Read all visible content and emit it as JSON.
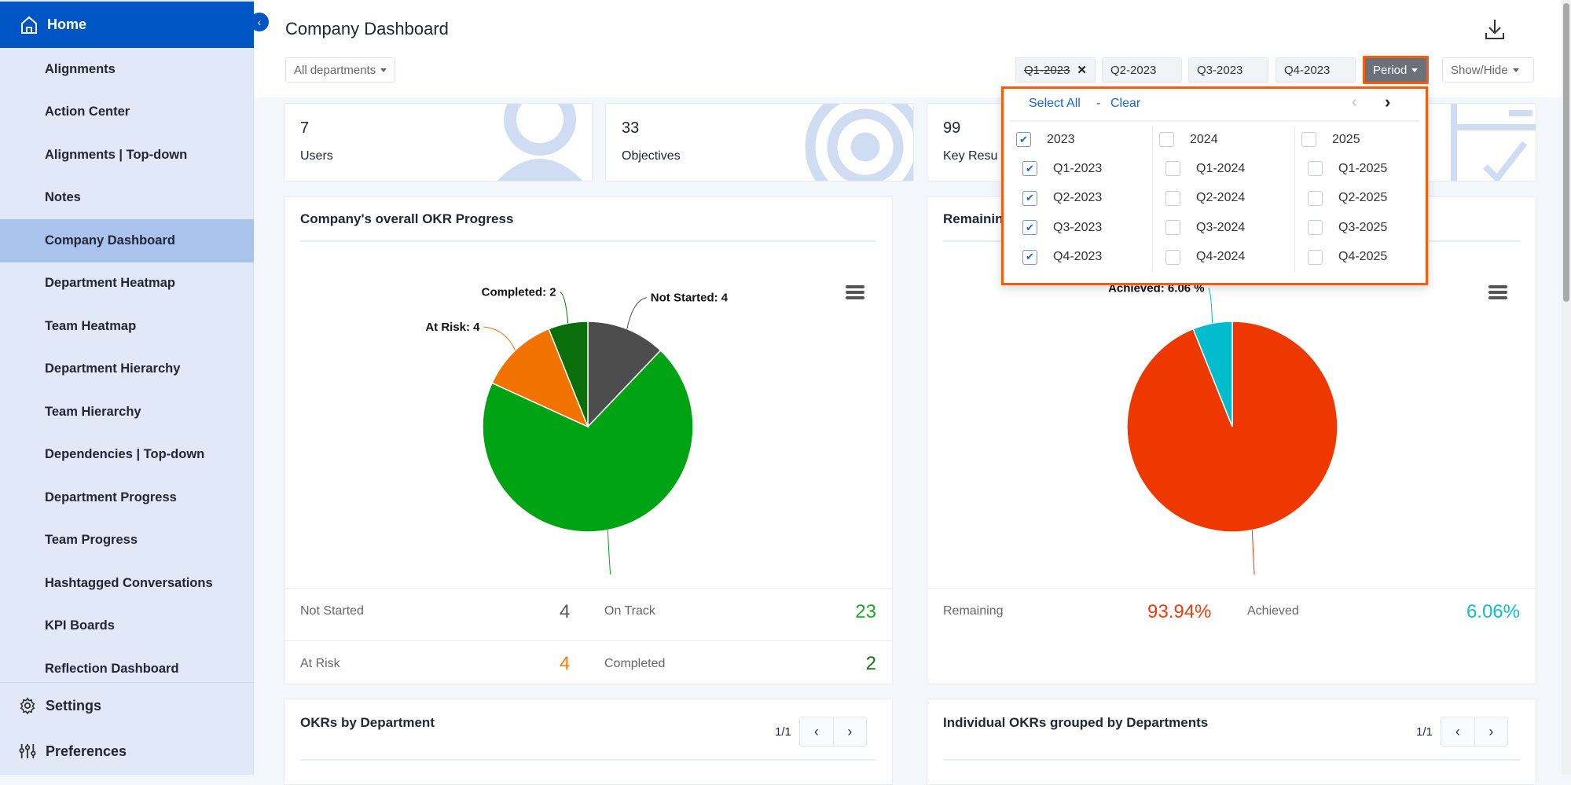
{
  "sidebar": {
    "home": "Home",
    "items": [
      "Alignments",
      "Action Center",
      "Alignments | Top-down",
      "Notes",
      "Company Dashboard",
      "Department Heatmap",
      "Team Heatmap",
      "Department Hierarchy",
      "Team Hierarchy",
      "Dependencies | Top-down",
      "Department Progress",
      "Team Progress",
      "Hashtagged Conversations",
      "KPI Boards",
      "Reflection Dashboard"
    ],
    "active": "Company Dashboard",
    "settings": "Settings",
    "preferences": "Preferences"
  },
  "header": {
    "title": "Company Dashboard",
    "department_filter": "All departments",
    "chips": [
      "Q1-2023",
      "Q2-2023",
      "Q3-2023",
      "Q4-2023"
    ],
    "period": "Period",
    "show_hide": "Show/Hide"
  },
  "period_dropdown": {
    "select_all": "Select All",
    "separator": "-",
    "clear": "Clear",
    "years": [
      {
        "year": "2023",
        "checked": true,
        "quarters": [
          {
            "label": "Q1-2023",
            "checked": true
          },
          {
            "label": "Q2-2023",
            "checked": true
          },
          {
            "label": "Q3-2023",
            "checked": true
          },
          {
            "label": "Q4-2023",
            "checked": true
          }
        ]
      },
      {
        "year": "2024",
        "checked": false,
        "quarters": [
          {
            "label": "Q1-2024",
            "checked": false
          },
          {
            "label": "Q2-2024",
            "checked": false
          },
          {
            "label": "Q3-2024",
            "checked": false
          },
          {
            "label": "Q4-2024",
            "checked": false
          }
        ]
      },
      {
        "year": "2025",
        "checked": false,
        "quarters": [
          {
            "label": "Q1-2025",
            "checked": false
          },
          {
            "label": "Q2-2025",
            "checked": false
          },
          {
            "label": "Q3-2025",
            "checked": false
          },
          {
            "label": "Q4-2025",
            "checked": false
          }
        ]
      }
    ]
  },
  "stats": [
    {
      "value": "7",
      "label": "Users"
    },
    {
      "value": "33",
      "label": "Objectives"
    },
    {
      "value": "99",
      "label": "Key Resu"
    }
  ],
  "okr_progress": {
    "title": "Company's overall OKR Progress",
    "legend": [
      {
        "label": "Not Started",
        "value": "4",
        "color": "#555555"
      },
      {
        "label": "On Track",
        "value": "23",
        "color": "#1ea82a"
      },
      {
        "label": "At Risk",
        "value": "4",
        "color": "#f47a0a"
      },
      {
        "label": "Completed",
        "value": "2",
        "color": "#0f7a14"
      }
    ]
  },
  "remaining": {
    "title": "Remaining",
    "legend": [
      {
        "label": "Remaining",
        "value": "93.94%",
        "color": "#f23c0c"
      },
      {
        "label": "Achieved",
        "value": "6.06%",
        "color": "#12bccc"
      }
    ]
  },
  "okrs_by_department": {
    "title": "OKRs by Department",
    "page": "1/1"
  },
  "individual_okrs": {
    "title": "Individual OKRs grouped by Departments",
    "page": "1/1"
  },
  "chart_data": [
    {
      "type": "pie",
      "title": "Company's overall OKR Progress",
      "labels": [
        "Not Started",
        "On Track",
        "At Risk",
        "Completed"
      ],
      "values": [
        4,
        23,
        4,
        2
      ],
      "data_labels": [
        "Not Started: 4",
        "On Track: 23",
        "At Risk: 4",
        "Completed: 2"
      ],
      "colors": [
        "#4d4d4d",
        "#00a314",
        "#f27200",
        "#0a6e0a"
      ]
    },
    {
      "type": "pie",
      "title": "Remaining",
      "labels": [
        "Remaining",
        "Achieved"
      ],
      "values": [
        93.94,
        6.06
      ],
      "data_labels": [
        "Remaining: 93.94 %",
        "Achieved: 6.06 %"
      ],
      "colors": [
        "#ee3800",
        "#00bccc"
      ]
    }
  ]
}
